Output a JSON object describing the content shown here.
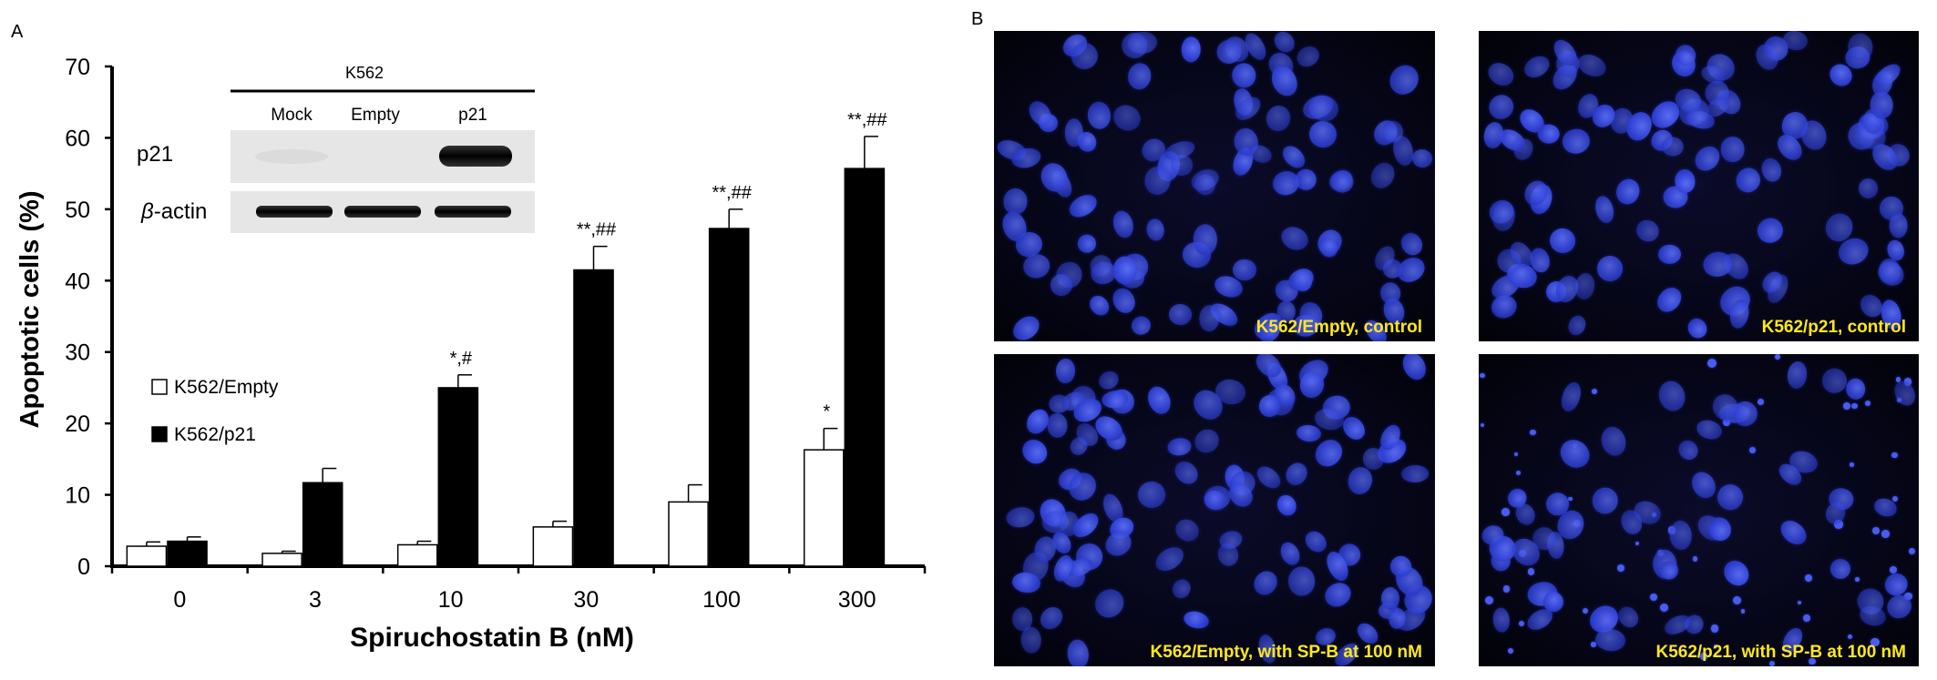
{
  "panel_a_label": "A",
  "panel_b_label": "B",
  "chart_data": {
    "type": "bar",
    "xlabel": "Spiruchostatin B (nM)",
    "ylabel": "Apoptotic cells (%)",
    "ylim": [
      0,
      70
    ],
    "yticks": [
      "0",
      "10",
      "20",
      "30",
      "40",
      "50",
      "60",
      "70"
    ],
    "categories": [
      "0",
      "3",
      "10",
      "30",
      "100",
      "300"
    ],
    "series": [
      {
        "name": "K562/Empty",
        "color": "#ffffff",
        "values": [
          2.8,
          1.8,
          3.0,
          5.5,
          9.0,
          16.3
        ],
        "errors": [
          0.6,
          0.3,
          0.5,
          0.8,
          2.4,
          3.0
        ],
        "annotations": [
          "",
          "",
          "",
          "",
          "",
          "*"
        ]
      },
      {
        "name": "K562/p21",
        "color": "#000000",
        "values": [
          3.5,
          11.7,
          25.0,
          41.5,
          47.3,
          55.7
        ],
        "errors": [
          0.6,
          2.0,
          1.8,
          3.3,
          2.7,
          4.5
        ],
        "annotations": [
          "",
          "",
          "*,#",
          "**,##",
          "**,##",
          "**,##"
        ]
      }
    ],
    "legend_position": "left-middle",
    "grid": false
  },
  "inset": {
    "cell_line": "K562",
    "lanes": [
      "Mock",
      "Empty",
      "p21"
    ],
    "rows": [
      {
        "label": "p21",
        "band_intensity": [
          0.05,
          0.0,
          1.0
        ]
      },
      {
        "label_prefix": "β",
        "label_suffix": "-actin",
        "band_intensity": [
          0.9,
          0.9,
          0.9
        ]
      }
    ]
  },
  "micrographs": [
    {
      "caption": "K562/Empty, control",
      "condition": "normal"
    },
    {
      "caption": "K562/p21, control",
      "condition": "normal"
    },
    {
      "caption": "K562/Empty, with SP-B at 100 nM",
      "condition": "normal"
    },
    {
      "caption": "K562/p21, with SP-B at 100 nM",
      "condition": "apoptotic"
    }
  ]
}
